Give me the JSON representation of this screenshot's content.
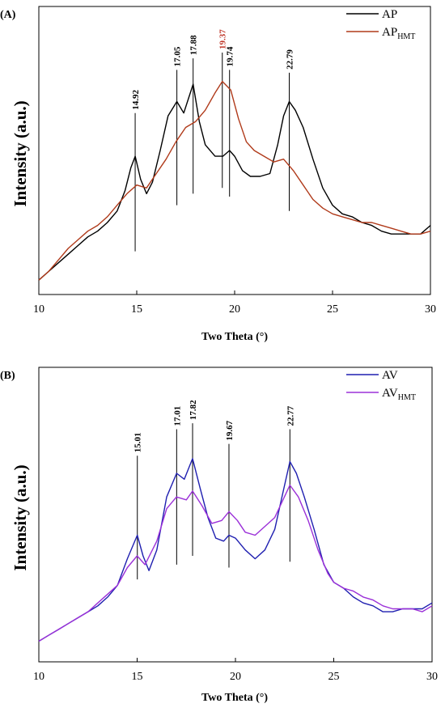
{
  "chart_data": [
    {
      "panel": "(A)",
      "type": "line",
      "xlabel": "Two Theta (°)",
      "ylabel": "Intensity (a.u.)",
      "xlim": [
        10,
        30
      ],
      "ylim": [
        0,
        100
      ],
      "xticks": [
        10,
        15,
        20,
        25,
        30
      ],
      "legend_position": "top-right",
      "series": [
        {
          "name": "AP",
          "name_main": "AP",
          "name_sub": "",
          "color": "#000000",
          "points": [
            [
              10,
              5
            ],
            [
              10.5,
              8
            ],
            [
              11,
              11
            ],
            [
              11.5,
              14
            ],
            [
              12,
              17
            ],
            [
              12.5,
              20
            ],
            [
              13,
              22
            ],
            [
              13.5,
              25
            ],
            [
              14,
              29
            ],
            [
              14.4,
              36
            ],
            [
              14.7,
              44
            ],
            [
              14.92,
              48
            ],
            [
              15.2,
              40
            ],
            [
              15.5,
              35
            ],
            [
              15.8,
              39
            ],
            [
              16.2,
              50
            ],
            [
              16.6,
              62
            ],
            [
              17.05,
              67
            ],
            [
              17.4,
              63
            ],
            [
              17.88,
              73
            ],
            [
              18.2,
              60
            ],
            [
              18.5,
              52
            ],
            [
              19,
              48
            ],
            [
              19.4,
              48
            ],
            [
              19.74,
              50
            ],
            [
              20,
              48
            ],
            [
              20.4,
              43
            ],
            [
              20.8,
              41
            ],
            [
              21.3,
              41
            ],
            [
              21.8,
              42
            ],
            [
              22.2,
              52
            ],
            [
              22.5,
              62
            ],
            [
              22.79,
              67
            ],
            [
              23.1,
              64
            ],
            [
              23.5,
              58
            ],
            [
              24,
              47
            ],
            [
              24.5,
              37
            ],
            [
              25,
              31
            ],
            [
              25.5,
              28
            ],
            [
              26,
              27
            ],
            [
              26.5,
              25
            ],
            [
              27,
              24
            ],
            [
              27.5,
              22
            ],
            [
              28,
              21
            ],
            [
              28.5,
              21
            ],
            [
              29,
              21
            ],
            [
              29.5,
              21
            ],
            [
              30,
              24
            ]
          ]
        },
        {
          "name": "AP_HMT",
          "name_main": "AP",
          "name_sub": "HMT",
          "color": "#b03a1a",
          "points": [
            [
              10,
              5
            ],
            [
              10.5,
              8
            ],
            [
              11,
              12
            ],
            [
              11.5,
              16
            ],
            [
              12,
              19
            ],
            [
              12.5,
              22
            ],
            [
              13,
              24
            ],
            [
              13.5,
              27
            ],
            [
              14,
              31
            ],
            [
              14.5,
              35
            ],
            [
              15,
              38
            ],
            [
              15.5,
              37
            ],
            [
              16,
              42
            ],
            [
              16.5,
              47
            ],
            [
              17,
              53
            ],
            [
              17.5,
              58
            ],
            [
              18,
              60
            ],
            [
              18.5,
              64
            ],
            [
              19,
              70
            ],
            [
              19.37,
              74
            ],
            [
              19.8,
              71
            ],
            [
              20.2,
              61
            ],
            [
              20.6,
              53
            ],
            [
              21,
              50
            ],
            [
              21.5,
              48
            ],
            [
              22,
              46
            ],
            [
              22.5,
              47
            ],
            [
              23,
              43
            ],
            [
              23.5,
              38
            ],
            [
              24,
              33
            ],
            [
              24.5,
              30
            ],
            [
              25,
              28
            ],
            [
              25.5,
              27
            ],
            [
              26,
              26
            ],
            [
              26.5,
              25
            ],
            [
              27,
              25
            ],
            [
              27.5,
              24
            ],
            [
              28,
              23
            ],
            [
              28.5,
              22
            ],
            [
              29,
              21
            ],
            [
              29.5,
              21
            ],
            [
              30,
              22
            ]
          ]
        }
      ],
      "peaks": [
        {
          "x": 14.92,
          "label": "14.92",
          "color": "#000000",
          "top": 63,
          "bottom": 15
        },
        {
          "x": 17.05,
          "label": "17.05",
          "color": "#000000",
          "top": 78,
          "bottom": 31
        },
        {
          "x": 17.88,
          "label": "17.88",
          "color": "#000000",
          "top": 82,
          "bottom": 35
        },
        {
          "x": 19.37,
          "label": "19.37",
          "color": "#c0392b",
          "top": 84,
          "bottom": 37
        },
        {
          "x": 19.74,
          "label": "19.74",
          "color": "#000000",
          "top": 78,
          "bottom": 34
        },
        {
          "x": 22.79,
          "label": "22.79",
          "color": "#000000",
          "top": 77,
          "bottom": 29
        }
      ]
    },
    {
      "panel": "(B)",
      "type": "line",
      "xlabel": "Two Theta (°)",
      "ylabel": "Intensity (a.u.)",
      "xlim": [
        10,
        30
      ],
      "ylim": [
        0,
        100
      ],
      "xticks": [
        10,
        15,
        20,
        25,
        30
      ],
      "legend_position": "top-right",
      "series": [
        {
          "name": "AV",
          "name_main": "AV",
          "name_sub": "",
          "color": "#1f1fb0",
          "points": [
            [
              10,
              7
            ],
            [
              10.5,
              9
            ],
            [
              11,
              11
            ],
            [
              11.5,
              13
            ],
            [
              12,
              15
            ],
            [
              12.5,
              17
            ],
            [
              13,
              19
            ],
            [
              13.5,
              22
            ],
            [
              14,
              26
            ],
            [
              14.5,
              35
            ],
            [
              15.01,
              43
            ],
            [
              15.3,
              36
            ],
            [
              15.6,
              31
            ],
            [
              16,
              38
            ],
            [
              16.5,
              56
            ],
            [
              17.01,
              64
            ],
            [
              17.4,
              62
            ],
            [
              17.82,
              69
            ],
            [
              18.2,
              59
            ],
            [
              18.6,
              49
            ],
            [
              19,
              42
            ],
            [
              19.4,
              41
            ],
            [
              19.67,
              43
            ],
            [
              20,
              42
            ],
            [
              20.5,
              38
            ],
            [
              21,
              35
            ],
            [
              21.5,
              38
            ],
            [
              22,
              45
            ],
            [
              22.4,
              57
            ],
            [
              22.77,
              68
            ],
            [
              23.1,
              64
            ],
            [
              23.5,
              56
            ],
            [
              24,
              45
            ],
            [
              24.5,
              33
            ],
            [
              25,
              27
            ],
            [
              25.5,
              25
            ],
            [
              26,
              22
            ],
            [
              26.5,
              20
            ],
            [
              27,
              19
            ],
            [
              27.5,
              17
            ],
            [
              28,
              17
            ],
            [
              28.5,
              18
            ],
            [
              29,
              18
            ],
            [
              29.5,
              18
            ],
            [
              30,
              20
            ]
          ]
        },
        {
          "name": "AV_HMT",
          "name_main": "AV",
          "name_sub": "HMT",
          "color": "#9b30d8",
          "points": [
            [
              10,
              7
            ],
            [
              10.5,
              9
            ],
            [
              11,
              11
            ],
            [
              11.5,
              13
            ],
            [
              12,
              15
            ],
            [
              12.5,
              17
            ],
            [
              13,
              20
            ],
            [
              13.5,
              23
            ],
            [
              14,
              26
            ],
            [
              14.5,
              32
            ],
            [
              15,
              36
            ],
            [
              15.4,
              33
            ],
            [
              16,
              41
            ],
            [
              16.5,
              52
            ],
            [
              17,
              56
            ],
            [
              17.5,
              55
            ],
            [
              17.82,
              58
            ],
            [
              18.3,
              53
            ],
            [
              18.8,
              47
            ],
            [
              19.3,
              48
            ],
            [
              19.67,
              51
            ],
            [
              20.1,
              48
            ],
            [
              20.5,
              44
            ],
            [
              21,
              43
            ],
            [
              21.5,
              46
            ],
            [
              22,
              49
            ],
            [
              22.77,
              60
            ],
            [
              23.2,
              56
            ],
            [
              23.7,
              48
            ],
            [
              24.2,
              38
            ],
            [
              24.7,
              30
            ],
            [
              25,
              27
            ],
            [
              25.5,
              25
            ],
            [
              26,
              24
            ],
            [
              26.5,
              22
            ],
            [
              27,
              21
            ],
            [
              27.5,
              19
            ],
            [
              28,
              18
            ],
            [
              28.5,
              18
            ],
            [
              29,
              18
            ],
            [
              29.5,
              17
            ],
            [
              30,
              19
            ]
          ]
        }
      ],
      "peaks": [
        {
          "x": 15.01,
          "label": "15.01",
          "color": "#000000",
          "top": 70,
          "bottom": 28
        },
        {
          "x": 17.01,
          "label": "17.01",
          "color": "#000000",
          "top": 79,
          "bottom": 33
        },
        {
          "x": 17.82,
          "label": "17.82",
          "color": "#000000",
          "top": 81,
          "bottom": 36
        },
        {
          "x": 19.67,
          "label": "19.67",
          "color": "#000000",
          "top": 74,
          "bottom": 32
        },
        {
          "x": 22.77,
          "label": "22.77",
          "color": "#000000",
          "top": 79,
          "bottom": 34
        }
      ]
    }
  ]
}
